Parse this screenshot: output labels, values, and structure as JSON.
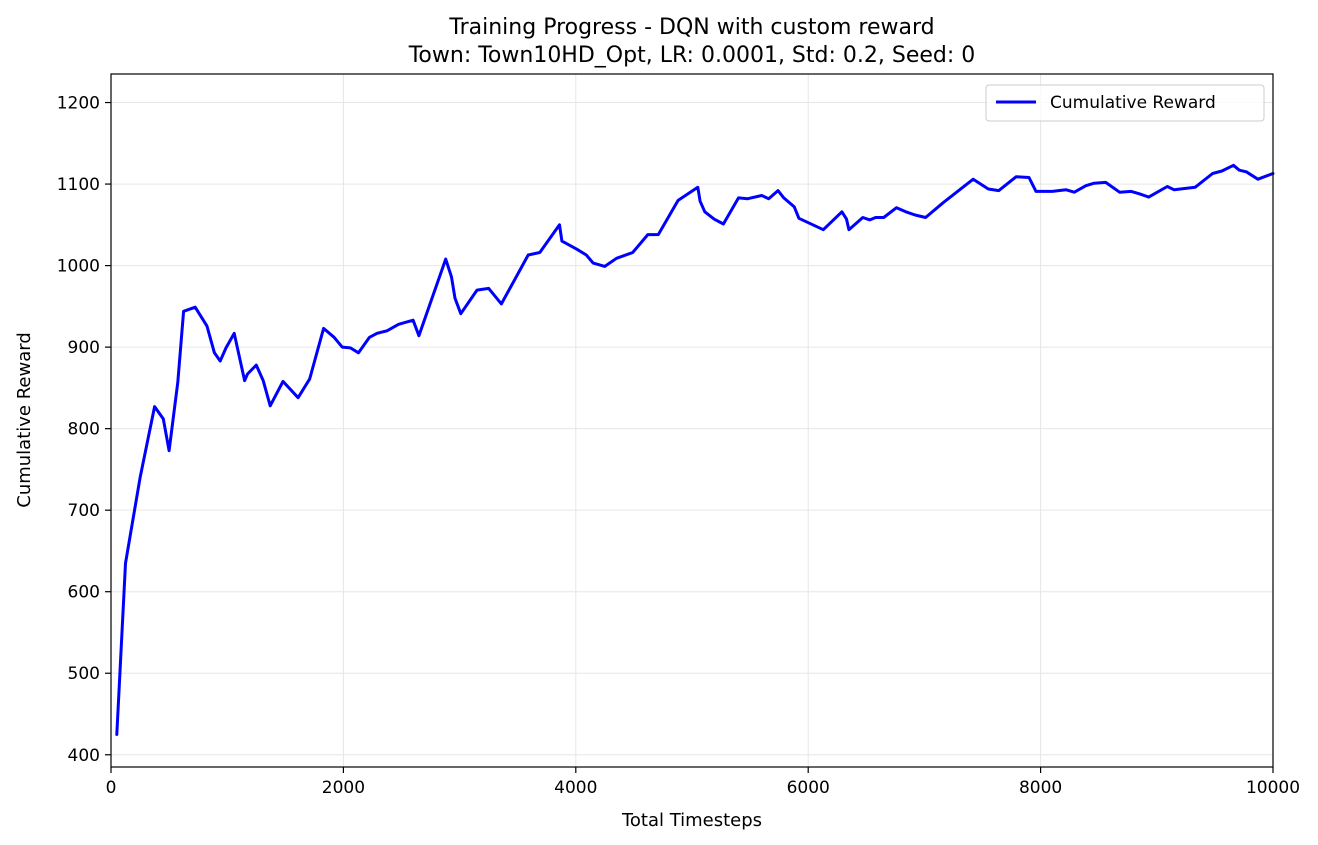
{
  "chart_data": {
    "type": "line",
    "title": "Training Progress - DQN with custom reward",
    "subtitle": "Town: Town10HD_Opt, LR: 0.0001, Std: 0.2, Seed: 0",
    "xlabel": "Total Timesteps",
    "ylabel": "Cumulative Reward",
    "xlim": [
      0,
      10000
    ],
    "ylim": [
      385,
      1235
    ],
    "xticks": [
      0,
      2000,
      4000,
      6000,
      8000,
      10000
    ],
    "yticks": [
      400,
      500,
      600,
      700,
      800,
      900,
      1000,
      1100,
      1200
    ],
    "grid": true,
    "legend": {
      "position": "top-right",
      "entries": [
        "Cumulative Reward"
      ]
    },
    "series": [
      {
        "name": "Cumulative Reward",
        "color": "#0000ff",
        "x": [
          50,
          125,
          250,
          375,
          450,
          500,
          575,
          625,
          725,
          825,
          890,
          940,
          990,
          1060,
          1150,
          1175,
          1250,
          1310,
          1370,
          1480,
          1610,
          1710,
          1830,
          1920,
          1990,
          2060,
          2130,
          2225,
          2290,
          2375,
          2475,
          2600,
          2650,
          2880,
          2930,
          2960,
          3010,
          3150,
          3250,
          3360,
          3590,
          3690,
          3860,
          3880,
          4010,
          4090,
          4150,
          4250,
          4350,
          4490,
          4620,
          4710,
          4880,
          5050,
          5070,
          5110,
          5190,
          5270,
          5400,
          5480,
          5600,
          5660,
          5740,
          5790,
          5880,
          5920,
          6130,
          6290,
          6330,
          6350,
          6470,
          6530,
          6580,
          6650,
          6760,
          6840,
          6920,
          7010,
          7160,
          7420,
          7550,
          7640,
          7790,
          7900,
          7960,
          8100,
          8220,
          8290,
          8390,
          8460,
          8560,
          8680,
          8780,
          8850,
          8930,
          9090,
          9150,
          9330,
          9480,
          9560,
          9660,
          9710,
          9770,
          9870,
          10000
        ],
        "y": [
          425,
          635,
          740,
          827,
          812,
          773,
          857,
          944,
          949,
          926,
          893,
          883,
          899,
          917,
          859,
          867,
          878,
          859,
          828,
          858,
          838,
          861,
          923,
          912,
          900,
          899,
          893,
          912,
          917,
          920,
          928,
          933,
          914,
          1008,
          986,
          960,
          941,
          970,
          972,
          953,
          1013,
          1016,
          1050,
          1030,
          1020,
          1013,
          1003,
          999,
          1009,
          1016,
          1038,
          1038,
          1080,
          1096,
          1079,
          1066,
          1057,
          1051,
          1083,
          1082,
          1086,
          1082,
          1092,
          1083,
          1072,
          1058,
          1044,
          1066,
          1057,
          1044,
          1059,
          1056,
          1059,
          1059,
          1071,
          1066,
          1062,
          1059,
          1077,
          1106,
          1094,
          1092,
          1109,
          1108,
          1091,
          1091,
          1093,
          1090,
          1098,
          1101,
          1102,
          1090,
          1091,
          1088,
          1084,
          1097,
          1093,
          1096,
          1113,
          1116,
          1123,
          1117,
          1115,
          1106,
          1113
        ]
      }
    ]
  }
}
